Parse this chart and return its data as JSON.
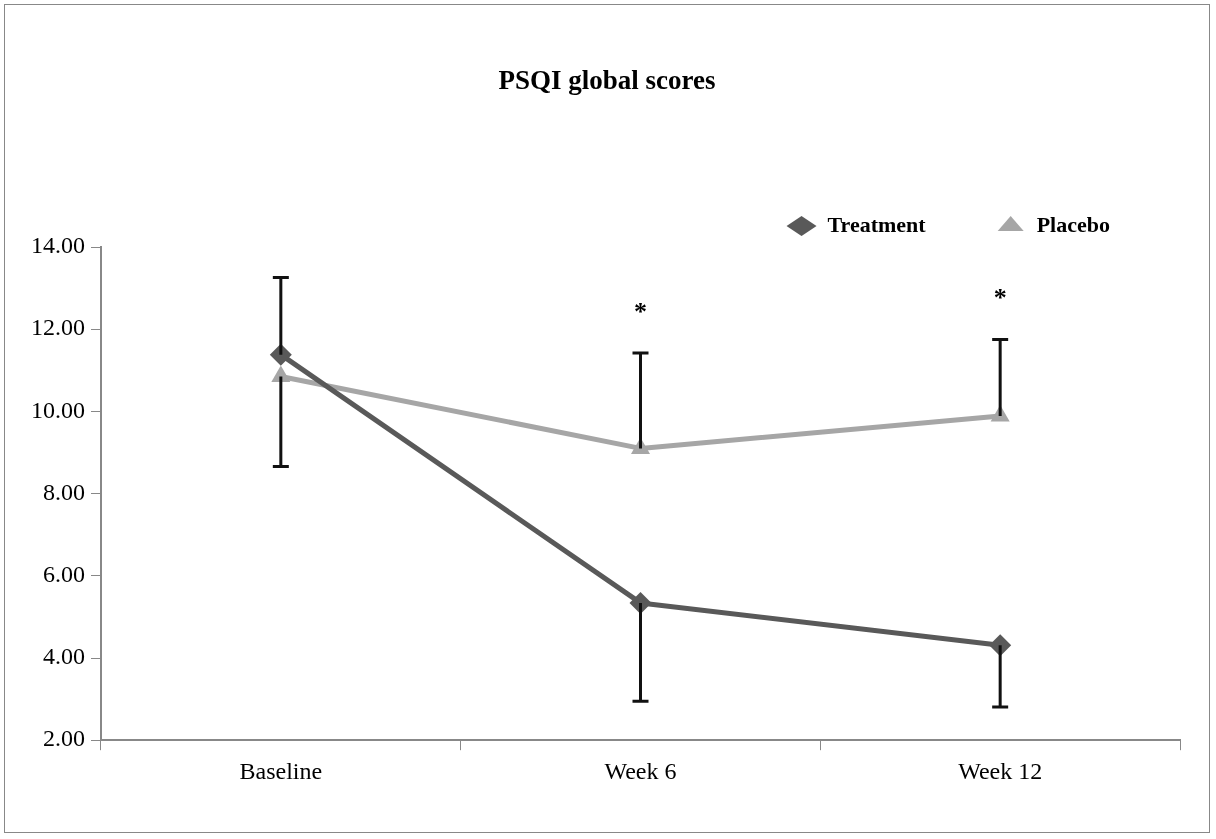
{
  "chart_data": {
    "type": "line",
    "title": "PSQI global scores",
    "categories": [
      "Baseline",
      "Week 6",
      "Week 12"
    ],
    "series": [
      {
        "name": "Treatment",
        "color": "#595959",
        "marker": "diamond",
        "values": [
          11.38,
          5.34,
          4.31
        ],
        "errors": [
          [
            11.38,
            13.26
          ],
          [
            2.95,
            5.34
          ],
          [
            2.81,
            4.31
          ]
        ]
      },
      {
        "name": "Placebo",
        "color": "#a6a6a6",
        "marker": "triangle",
        "values": [
          10.85,
          9.1,
          9.89
        ],
        "errors": [
          [
            8.66,
            10.85
          ],
          [
            9.1,
            11.42
          ],
          [
            9.89,
            11.75
          ]
        ]
      }
    ],
    "ylim": [
      2,
      14
    ],
    "yticks": [
      {
        "value": 2,
        "label": "2.00"
      },
      {
        "value": 4,
        "label": "4.00"
      },
      {
        "value": 6,
        "label": "6.00"
      },
      {
        "value": 8,
        "label": "8.00"
      },
      {
        "value": 10,
        "label": "10.00"
      },
      {
        "value": 12,
        "label": "12.00"
      },
      {
        "value": 14,
        "label": "14.00"
      }
    ],
    "annotations": [
      "*",
      "*"
    ],
    "grid": false,
    "legend": "top right"
  }
}
